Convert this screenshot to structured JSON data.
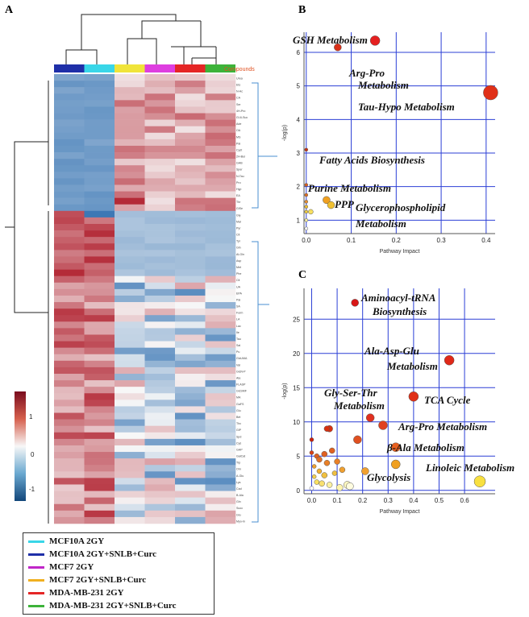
{
  "panels": {
    "a": "A",
    "b": "B",
    "c": "C"
  },
  "heatmap": {
    "compounds_label": "Compounds",
    "colorbar_ticks": [
      "1",
      "0",
      "-1"
    ],
    "column_colors": [
      "#1f2fa8",
      "#39d6e8",
      "#f0e43a",
      "#de3ee0",
      "#e52626",
      "#3db33a"
    ],
    "rows": [
      "Urea",
      "Ets",
      "N-Ac",
      "CA",
      "Ser",
      "4H-Pro",
      "Gl-6-Suc",
      "Ade",
      "OA",
      "MS",
      "Pal",
      "Cyst",
      "2H-Bul",
      "GAB",
      "Sper",
      "N-Tau",
      "Pro",
      "Hyp",
      "EA",
      "Thr",
      "GlSe",
      "Gly",
      "Mal",
      "Pyr",
      "Cit",
      "Tyr",
      "Gln",
      "Al-Gln",
      "Asp",
      "Met",
      "Phe",
      "Cit",
      "UA",
      "EPA",
      "Pal",
      "SA",
      "Form",
      "LA",
      "Lac",
      "Ile",
      "Tau",
      "Sal",
      "Pu",
      "GlcUMA",
      "Val",
      "GlcN-P",
      "Ala",
      "FLASP",
      "GlcSMF",
      "MA",
      "GaFS",
      "Glu",
      "Bet",
      "Thc",
      "GlP",
      "Spd",
      "Cys",
      "GAP",
      "GalCat",
      "Trp",
      "Orn",
      "A-Glu",
      "Lys",
      "Cad",
      "B-Ala",
      "Gln",
      "Succ",
      "Glu",
      "Myo-In"
    ]
  },
  "legend": [
    {
      "label": "MCF10A 2GY",
      "color": "#39d6e8"
    },
    {
      "label": "MCF10A 2GY+SNLB+Curc",
      "color": "#1f2fa8"
    },
    {
      "label": "MCF7 2GY",
      "color": "#c026c8"
    },
    {
      "label": "MCF7 2GY+SNLB+Curc",
      "color": "#f0b020"
    },
    {
      "label": "MDA-MB-231 2GY",
      "color": "#e52626"
    },
    {
      "label": "MDA-MB-231 2GY+SNLB+Curc",
      "color": "#3db33a"
    }
  ],
  "chart_data": [
    {
      "type": "scatter",
      "panel": "B",
      "xlabel": "Pathway Impact",
      "ylabel": "-log(p)",
      "xlim": [
        -0.005,
        0.42
      ],
      "ylim": [
        0.6,
        6.6
      ],
      "xticks": [
        0.0,
        0.1,
        0.2,
        0.3,
        0.4
      ],
      "yticks": [
        1,
        2,
        3,
        4,
        5,
        6
      ],
      "points": [
        {
          "x": 0.153,
          "y": 6.35,
          "r": 6,
          "color": "#e52020"
        },
        {
          "x": 0.07,
          "y": 6.15,
          "r": 4.5,
          "color": "#d93018"
        },
        {
          "x": 0.41,
          "y": 4.8,
          "r": 9,
          "color": "#e03018"
        },
        {
          "x": 0.0,
          "y": 3.1,
          "r": 2,
          "color": "#c83010"
        },
        {
          "x": 0.0,
          "y": 2.05,
          "r": 2,
          "color": "#d86020"
        },
        {
          "x": 0.0,
          "y": 1.75,
          "r": 2,
          "color": "#e07020"
        },
        {
          "x": 0.0,
          "y": 1.55,
          "r": 2,
          "color": "#e89030"
        },
        {
          "x": 0.045,
          "y": 1.6,
          "r": 4.5,
          "color": "#f0a020"
        },
        {
          "x": 0.055,
          "y": 1.45,
          "r": 4.5,
          "color": "#f0c030"
        },
        {
          "x": 0.0,
          "y": 1.4,
          "r": 2,
          "color": "#f0c030"
        },
        {
          "x": 0.0,
          "y": 1.25,
          "r": 2,
          "color": "#f4d040"
        },
        {
          "x": 0.01,
          "y": 1.25,
          "r": 3,
          "color": "#f8e060"
        },
        {
          "x": 0.0,
          "y": 1.0,
          "r": 2,
          "color": "#f8f0a0"
        },
        {
          "x": 0.0,
          "y": 0.75,
          "r": 2,
          "color": "#ffffff"
        }
      ],
      "annotations": [
        "GSH Metabolism",
        "Arg-Pro",
        "Metabolism",
        "Tau-Hypo Metabolism",
        "Fatty Acids Biosynthesis",
        "Purine Metabolism",
        "PPP",
        "Glycerophospholipid",
        "Metabolism"
      ]
    },
    {
      "type": "scatter",
      "panel": "C",
      "xlabel": "Pathway Impact",
      "ylabel": "-log(p)",
      "xlim": [
        -0.03,
        0.72
      ],
      "ylim": [
        -0.5,
        29.5
      ],
      "xticks": [
        0.0,
        0.1,
        0.2,
        0.3,
        0.4,
        0.5,
        0.6
      ],
      "yticks": [
        0,
        5,
        10,
        15,
        20,
        25
      ],
      "points": [
        {
          "x": 0.17,
          "y": 27.4,
          "r": 4.5,
          "color": "#d81818"
        },
        {
          "x": 0.54,
          "y": 19.0,
          "r": 6,
          "color": "#e02818"
        },
        {
          "x": 0.4,
          "y": 13.7,
          "r": 6,
          "color": "#e03018"
        },
        {
          "x": 0.23,
          "y": 10.6,
          "r": 5,
          "color": "#e03020"
        },
        {
          "x": 0.28,
          "y": 9.5,
          "r": 5.5,
          "color": "#e04020"
        },
        {
          "x": 0.07,
          "y": 9.0,
          "r": 4,
          "color": "#d83010"
        },
        {
          "x": 0.06,
          "y": 9.0,
          "r": 3.5,
          "color": "#d83010"
        },
        {
          "x": 0.18,
          "y": 7.4,
          "r": 5,
          "color": "#e05020"
        },
        {
          "x": 0.33,
          "y": 6.3,
          "r": 5.5,
          "color": "#e86020"
        },
        {
          "x": 0.0,
          "y": 7.4,
          "r": 2.5,
          "color": "#c82010"
        },
        {
          "x": 0.0,
          "y": 5.5,
          "r": 2.5,
          "color": "#d84018"
        },
        {
          "x": 0.02,
          "y": 5.0,
          "r": 3,
          "color": "#e06020"
        },
        {
          "x": 0.03,
          "y": 4.5,
          "r": 3.5,
          "color": "#e07028"
        },
        {
          "x": 0.05,
          "y": 5.3,
          "r": 3.5,
          "color": "#e06020"
        },
        {
          "x": 0.08,
          "y": 5.8,
          "r": 3.5,
          "color": "#e06020"
        },
        {
          "x": 0.1,
          "y": 4.2,
          "r": 3.5,
          "color": "#e88028"
        },
        {
          "x": 0.06,
          "y": 4.0,
          "r": 3.5,
          "color": "#e88028"
        },
        {
          "x": 0.12,
          "y": 3.0,
          "r": 3.5,
          "color": "#f0a030"
        },
        {
          "x": 0.21,
          "y": 2.8,
          "r": 4.5,
          "color": "#f0a030"
        },
        {
          "x": 0.33,
          "y": 3.8,
          "r": 5.5,
          "color": "#f0a020"
        },
        {
          "x": 0.01,
          "y": 3.5,
          "r": 2.5,
          "color": "#f0a030"
        },
        {
          "x": 0.03,
          "y": 2.8,
          "r": 3,
          "color": "#f0b030"
        },
        {
          "x": 0.05,
          "y": 2.2,
          "r": 3.5,
          "color": "#f0c040"
        },
        {
          "x": 0.09,
          "y": 2.5,
          "r": 3,
          "color": "#f0c040"
        },
        {
          "x": 0.01,
          "y": 2.0,
          "r": 2.5,
          "color": "#f4d050"
        },
        {
          "x": 0.02,
          "y": 1.2,
          "r": 3,
          "color": "#f8e060"
        },
        {
          "x": 0.04,
          "y": 1.0,
          "r": 3.5,
          "color": "#f8e070"
        },
        {
          "x": 0.07,
          "y": 0.8,
          "r": 3.5,
          "color": "#fcf0a0"
        },
        {
          "x": 0.11,
          "y": 0.4,
          "r": 4,
          "color": "#fff4b0"
        },
        {
          "x": 0.14,
          "y": 0.8,
          "r": 4.5,
          "color": "#fff8c0"
        },
        {
          "x": 0.15,
          "y": 0.6,
          "r": 4.5,
          "color": "#fffce0"
        },
        {
          "x": 0.66,
          "y": 1.3,
          "r": 7,
          "color": "#f8e040"
        },
        {
          "x": 0.0,
          "y": 0.3,
          "r": 2.5,
          "color": "#ffffff"
        }
      ],
      "annotations": [
        "Aminoacyl-tRNA",
        "Biosynthesis",
        "Ala-Asp-Glu",
        "Metabolism",
        "Gly-Ser-Thr",
        "Metabolism",
        "TCA Cycle",
        "Arg-Pro Metabolism",
        "β-Ala Metabolism",
        "Linoleic Metabolism",
        "Glycolysis"
      ]
    }
  ]
}
